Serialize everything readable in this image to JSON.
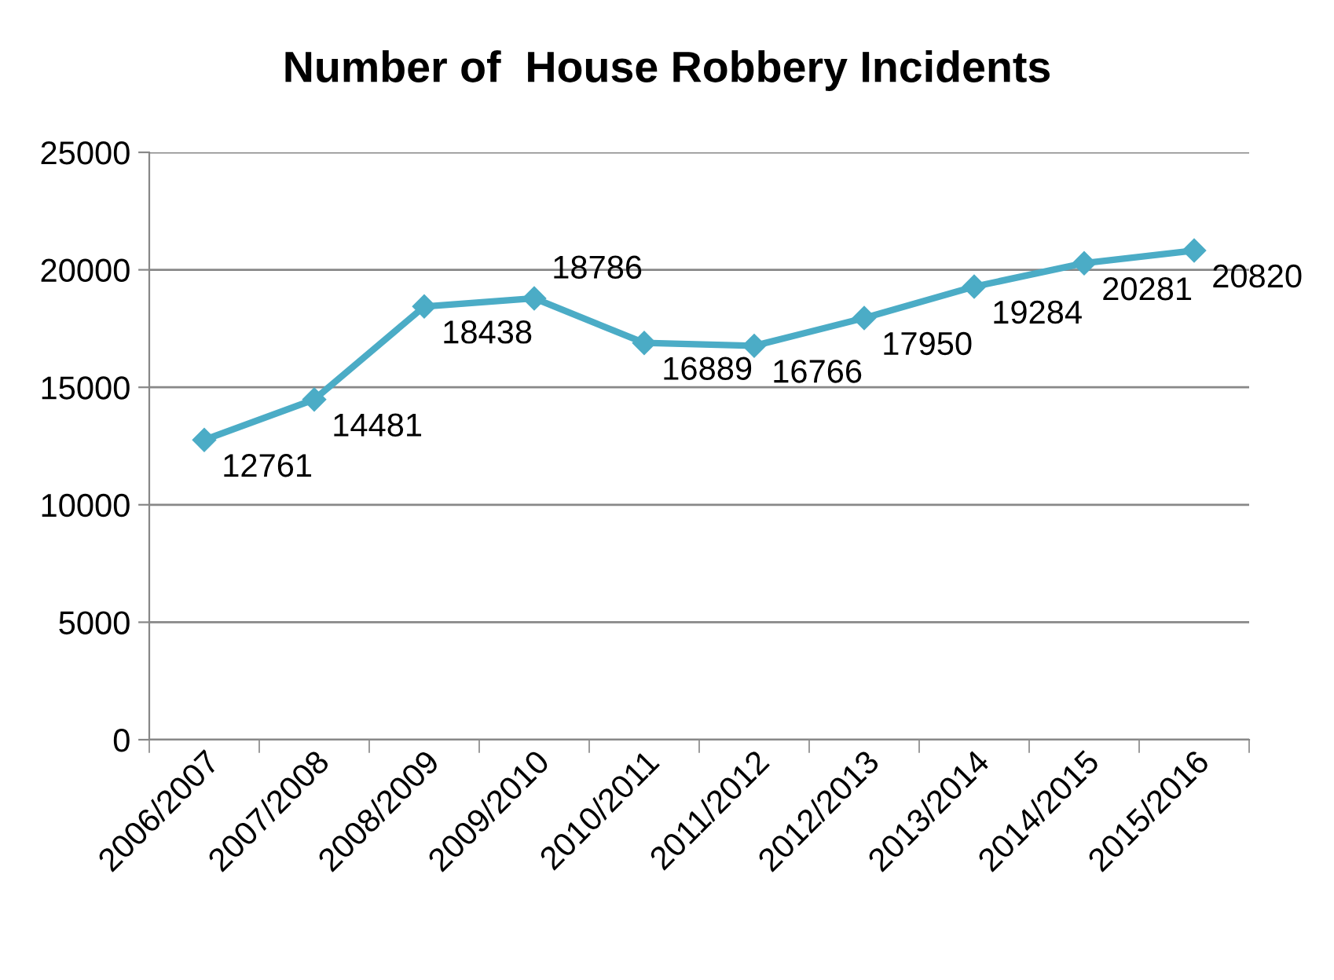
{
  "chart_data": {
    "type": "line",
    "title": "Number of  House Robbery Incidents",
    "categories": [
      "2006/2007",
      "2007/2008",
      "2008/2009",
      "2009/2010",
      "2010/2011",
      "2011/2012",
      "2012/2013",
      "2013/2014",
      "2014/2015",
      "2015/2016"
    ],
    "series": [
      {
        "color": "#4bacc6",
        "values": [
          12761,
          14481,
          18438,
          18786,
          16889,
          16766,
          17950,
          19284,
          20281,
          20820
        ]
      }
    ],
    "ylim": [
      0,
      25000
    ],
    "yticks": [
      0,
      5000,
      10000,
      15000,
      20000,
      25000
    ],
    "grid": "y",
    "marker": "diamond",
    "line_style": "solid",
    "data_labels": true
  }
}
